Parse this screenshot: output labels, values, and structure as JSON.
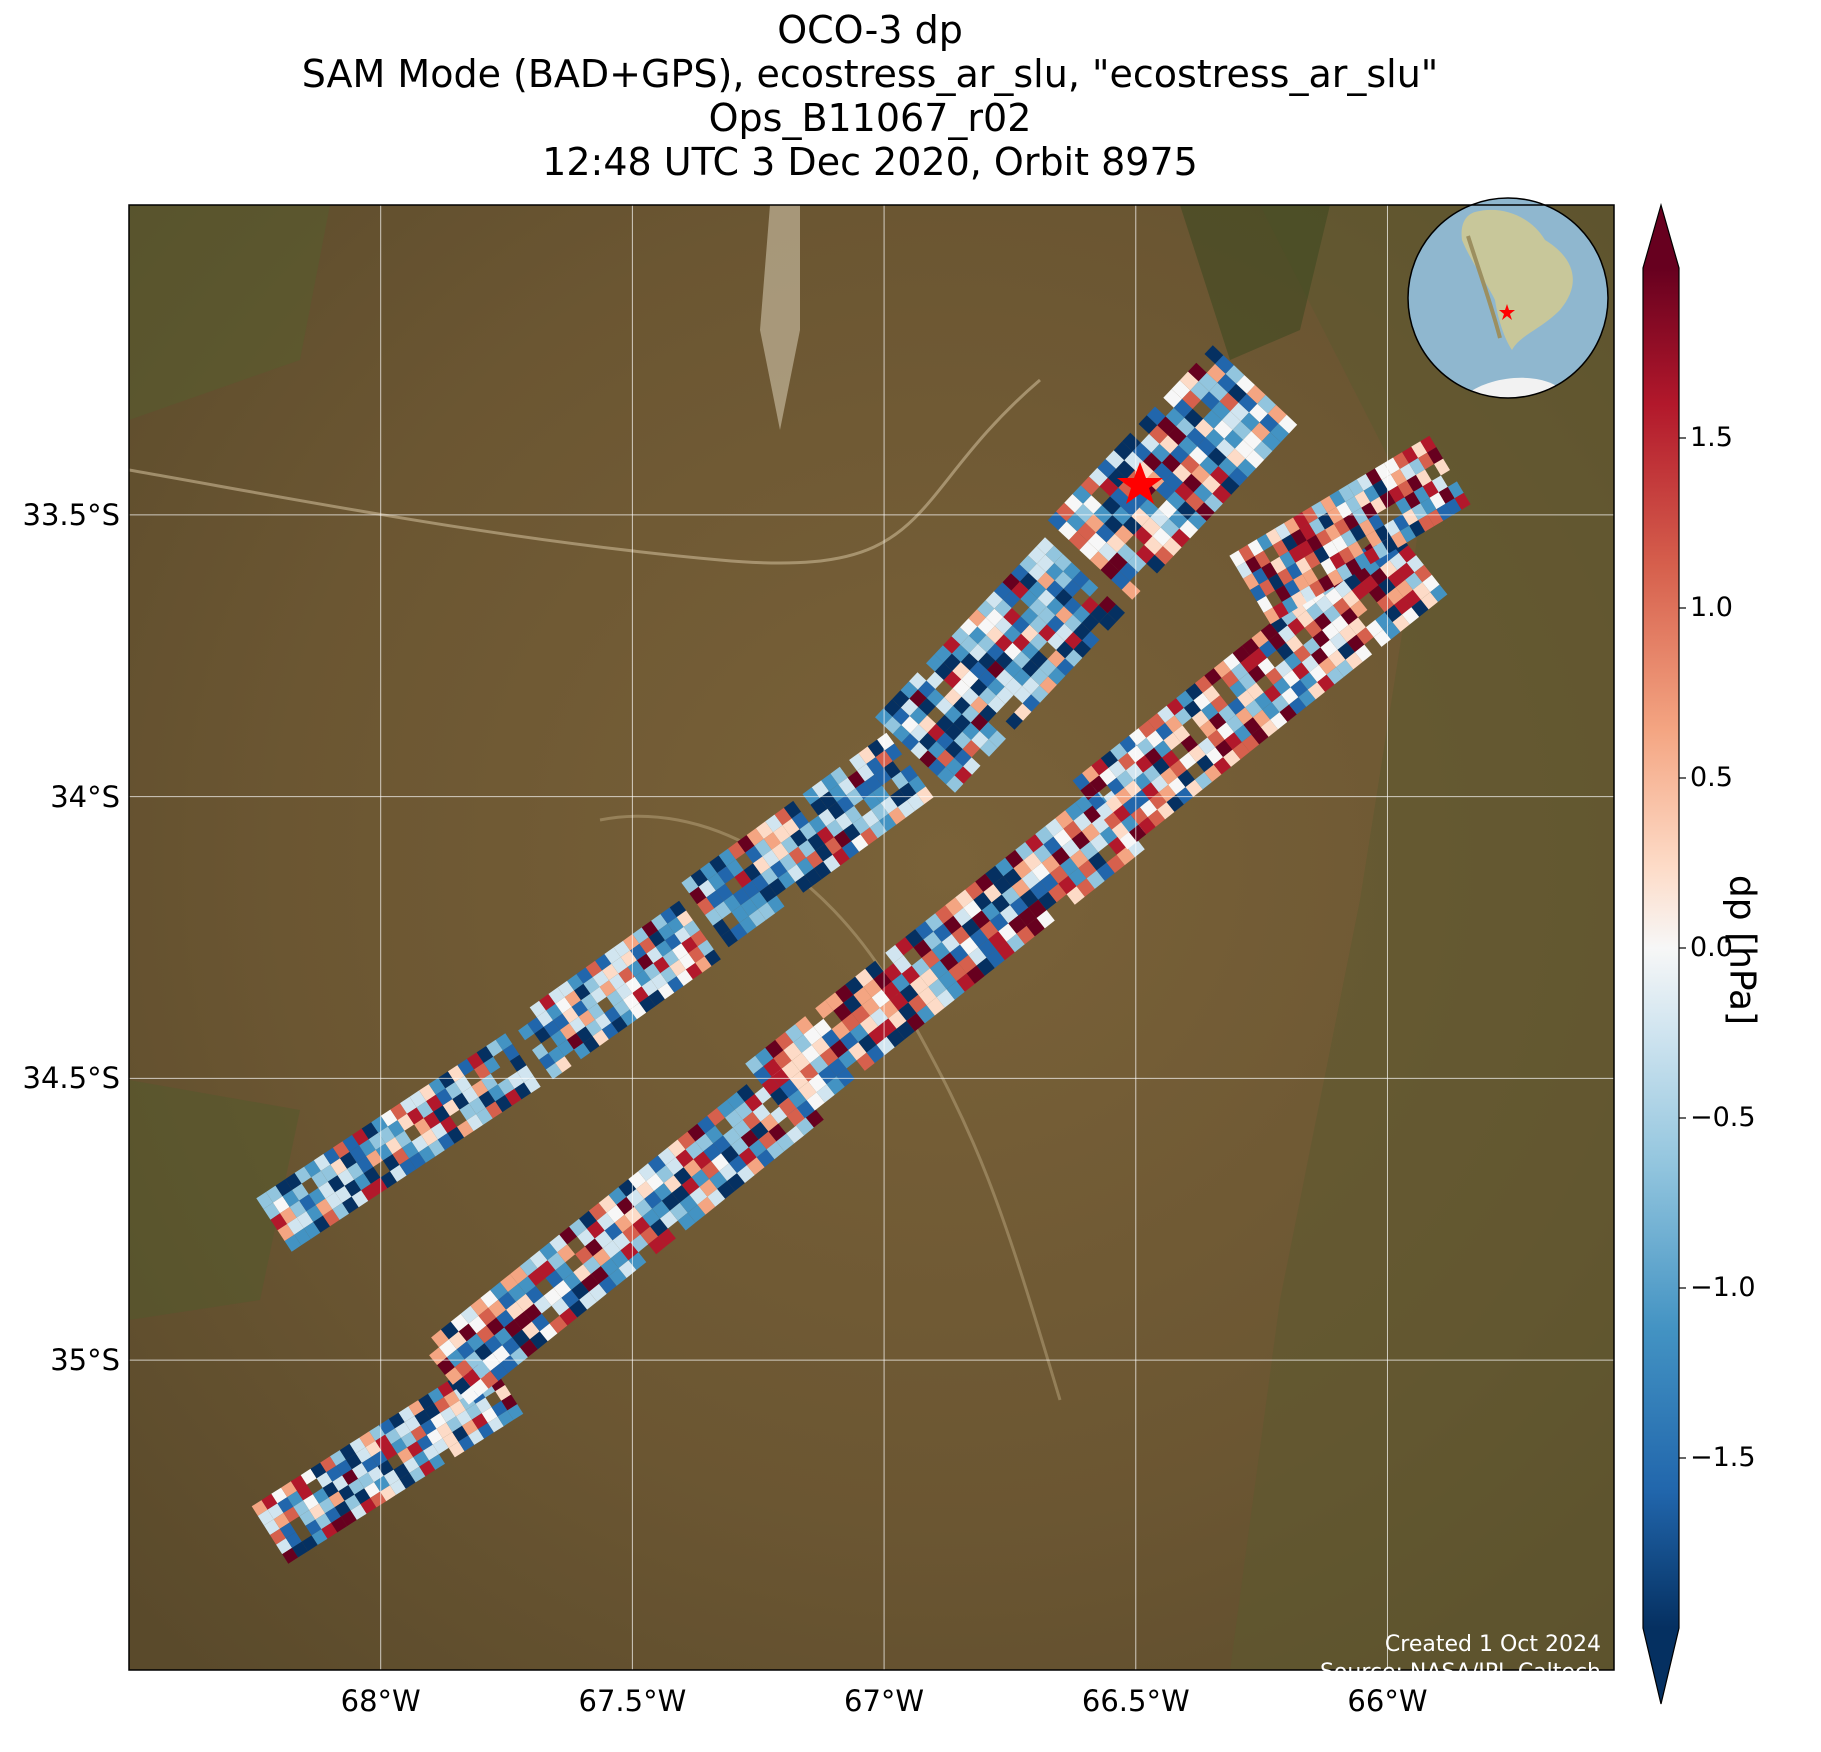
{
  "title": {
    "line1": "OCO-3 dp",
    "line2": "SAM Mode (BAD+GPS), ecostress_ar_slu, \"ecostress_ar_slu\"",
    "line3": "Ops_B11067_r02",
    "line4": "12:48 UTC 3 Dec 2020, Orbit 8975"
  },
  "map": {
    "lon_range": [
      -68.5,
      -65.55
    ],
    "lat_range": [
      -35.55,
      -32.95
    ],
    "lat_ticks": [
      {
        "value": -33.5,
        "label": "33.5°S"
      },
      {
        "value": -34.0,
        "label": "34°S"
      },
      {
        "value": -34.5,
        "label": "34.5°S"
      },
      {
        "value": -35.0,
        "label": "35°S"
      }
    ],
    "lon_ticks": [
      {
        "value": -68.0,
        "label": "68°W"
      },
      {
        "value": -67.5,
        "label": "67.5°W"
      },
      {
        "value": -67.0,
        "label": "67°W"
      },
      {
        "value": -66.5,
        "label": "66.5°W"
      },
      {
        "value": -66.0,
        "label": "66°W"
      }
    ],
    "gridlines": true,
    "target_marker": {
      "lon": -66.45,
      "lat": -33.46,
      "symbol": "star",
      "color": "#ff0000"
    },
    "background": "satellite imagery",
    "inset": "orthographic globe of South America with red star at target",
    "credit_line1": "Created 1 Oct 2024",
    "credit_line2": "Source: NASA/JPL-Caltech"
  },
  "colorbar": {
    "label": "dp [hPa]",
    "range": [
      -2.0,
      2.0
    ],
    "extend": "both",
    "ticks": [
      {
        "value": 1.5,
        "label": "1.5"
      },
      {
        "value": 1.0,
        "label": "1.0"
      },
      {
        "value": 0.5,
        "label": "0.5"
      },
      {
        "value": 0.0,
        "label": "0.0"
      },
      {
        "value": -0.5,
        "label": "−0.5"
      },
      {
        "value": -1.0,
        "label": "−1.0"
      },
      {
        "value": -1.5,
        "label": "−1.5"
      }
    ],
    "colormap": [
      "#053061",
      "#2166ac",
      "#4393c3",
      "#92c5de",
      "#d1e5f0",
      "#f7f7f7",
      "#fddbc7",
      "#f4a582",
      "#d6604d",
      "#b2182b",
      "#67001f"
    ]
  },
  "colors": {
    "land_base": "#6f5a34",
    "land_light": "#8b7145",
    "vegetation": "#4c5a2a",
    "gridline": "#ffffff",
    "ocean": "#8fb7cf"
  }
}
